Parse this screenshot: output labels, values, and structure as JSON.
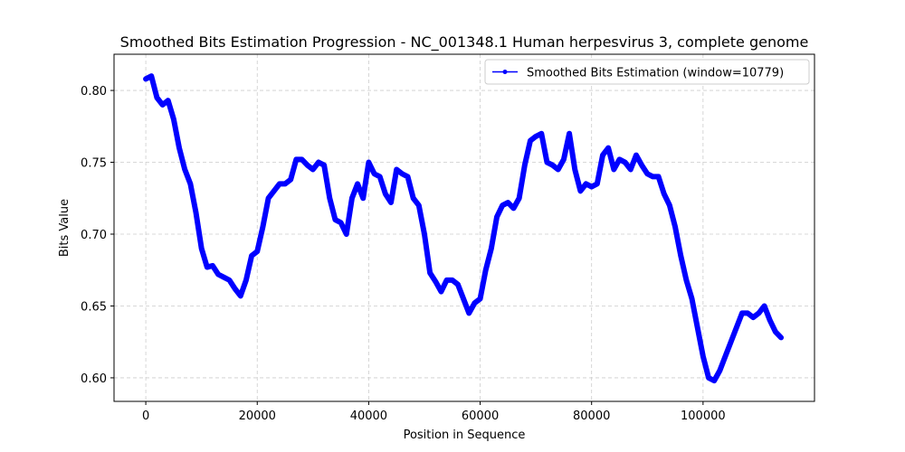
{
  "chart_data": {
    "type": "line",
    "title": "Smoothed Bits Estimation Progression - NC_001348.1 Human herpesvirus 3, complete genome",
    "xlabel": "Position in Sequence",
    "ylabel": "Bits Value",
    "x": [
      0,
      1000,
      2000,
      3000,
      4000,
      5000,
      6000,
      7000,
      8000,
      9000,
      10000,
      11000,
      12000,
      13000,
      14000,
      15000,
      16000,
      17000,
      18000,
      19000,
      20000,
      21000,
      22000,
      23000,
      24000,
      25000,
      26000,
      27000,
      28000,
      29000,
      30000,
      31000,
      32000,
      33000,
      34000,
      35000,
      36000,
      37000,
      38000,
      39000,
      40000,
      41000,
      42000,
      43000,
      44000,
      45000,
      46000,
      47000,
      48000,
      49000,
      50000,
      51000,
      52000,
      53000,
      54000,
      55000,
      56000,
      57000,
      58000,
      59000,
      60000,
      61000,
      62000,
      63000,
      64000,
      65000,
      66000,
      67000,
      68000,
      69000,
      70000,
      71000,
      72000,
      73000,
      74000,
      75000,
      76000,
      77000,
      78000,
      79000,
      80000,
      81000,
      82000,
      83000,
      84000,
      85000,
      86000,
      87000,
      88000,
      89000,
      90000,
      91000,
      92000,
      93000,
      94000,
      95000,
      96000,
      97000,
      98000,
      99000,
      100000,
      101000,
      102000,
      103000,
      104000,
      105000,
      106000,
      107000,
      108000,
      109000,
      110000,
      111000,
      112000,
      113000,
      114000
    ],
    "series": [
      {
        "name": "Smoothed Bits Estimation (window=10779)",
        "color": "#0000ff",
        "values": [
          0.808,
          0.81,
          0.795,
          0.79,
          0.793,
          0.78,
          0.76,
          0.745,
          0.735,
          0.715,
          0.69,
          0.677,
          0.678,
          0.672,
          0.67,
          0.668,
          0.662,
          0.657,
          0.668,
          0.685,
          0.688,
          0.705,
          0.725,
          0.73,
          0.735,
          0.735,
          0.738,
          0.752,
          0.752,
          0.748,
          0.745,
          0.75,
          0.748,
          0.725,
          0.71,
          0.708,
          0.7,
          0.725,
          0.735,
          0.725,
          0.75,
          0.742,
          0.74,
          0.728,
          0.722,
          0.745,
          0.742,
          0.74,
          0.725,
          0.72,
          0.7,
          0.673,
          0.667,
          0.66,
          0.668,
          0.668,
          0.665,
          0.655,
          0.645,
          0.652,
          0.655,
          0.675,
          0.69,
          0.712,
          0.72,
          0.722,
          0.718,
          0.725,
          0.748,
          0.765,
          0.768,
          0.77,
          0.75,
          0.748,
          0.745,
          0.752,
          0.77,
          0.745,
          0.73,
          0.735,
          0.733,
          0.735,
          0.755,
          0.76,
          0.745,
          0.752,
          0.75,
          0.745,
          0.755,
          0.748,
          0.742,
          0.74,
          0.74,
          0.728,
          0.72,
          0.705,
          0.685,
          0.668,
          0.655,
          0.635,
          0.615,
          0.6,
          0.598,
          0.605,
          0.615,
          0.625,
          0.635,
          0.645,
          0.645,
          0.642,
          0.645,
          0.65,
          0.64,
          0.632,
          0.628
        ]
      }
    ],
    "xlim": [
      -5700,
      120000
    ],
    "ylim": [
      0.5836,
      0.8252
    ],
    "xticks": [
      0,
      20000,
      40000,
      60000,
      80000,
      100000
    ],
    "yticks": [
      {
        "value": 0.6,
        "label": "0.60"
      },
      {
        "value": 0.65,
        "label": "0.65"
      },
      {
        "value": 0.7,
        "label": "0.70"
      },
      {
        "value": 0.75,
        "label": "0.75"
      },
      {
        "value": 0.8,
        "label": "0.80"
      }
    ],
    "grid": true,
    "legend": "upper right"
  }
}
